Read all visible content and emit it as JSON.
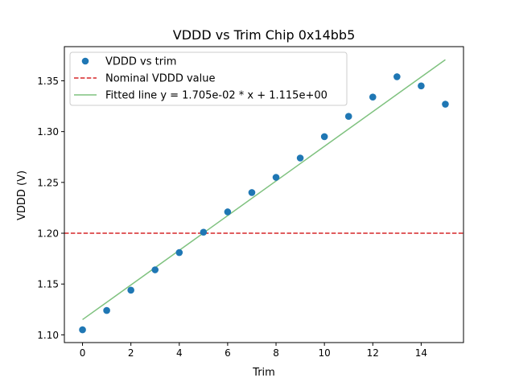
{
  "chart_data": {
    "type": "scatter",
    "title": "VDDD vs Trim Chip 0x14bb5",
    "xlabel": "Trim",
    "ylabel": "VDDD (V)",
    "xlim": [
      -0.75,
      15.75
    ],
    "ylim": [
      1.0924,
      1.3836
    ],
    "xticks": [
      0,
      2,
      4,
      6,
      8,
      10,
      12,
      14
    ],
    "xtick_labels": [
      "0",
      "2",
      "4",
      "6",
      "8",
      "10",
      "12",
      "14"
    ],
    "yticks": [
      1.1,
      1.15,
      1.2,
      1.25,
      1.3,
      1.35
    ],
    "ytick_labels": [
      "1.10",
      "1.15",
      "1.20",
      "1.25",
      "1.30",
      "1.35"
    ],
    "grid": false,
    "legend_position": "top-left",
    "series": [
      {
        "name": "VDDD vs trim",
        "kind": "scatter",
        "color": "#1f77b4",
        "x": [
          0,
          1,
          2,
          3,
          4,
          5,
          6,
          7,
          8,
          9,
          10,
          11,
          12,
          13,
          14,
          15
        ],
        "y": [
          1.105,
          1.124,
          1.144,
          1.164,
          1.181,
          1.201,
          1.221,
          1.24,
          1.255,
          1.274,
          1.295,
          1.315,
          1.334,
          1.354,
          1.345,
          1.327
        ]
      },
      {
        "name": "Nominal VDDD value",
        "kind": "hline",
        "color": "#d62728",
        "y": 1.2
      },
      {
        "name": "Fitted line y = 1.705e-02 * x + 1.115e+00",
        "kind": "line",
        "color": "#7fc27f",
        "slope": 0.01705,
        "intercept": 1.115,
        "x_range": [
          0,
          15
        ]
      }
    ]
  }
}
